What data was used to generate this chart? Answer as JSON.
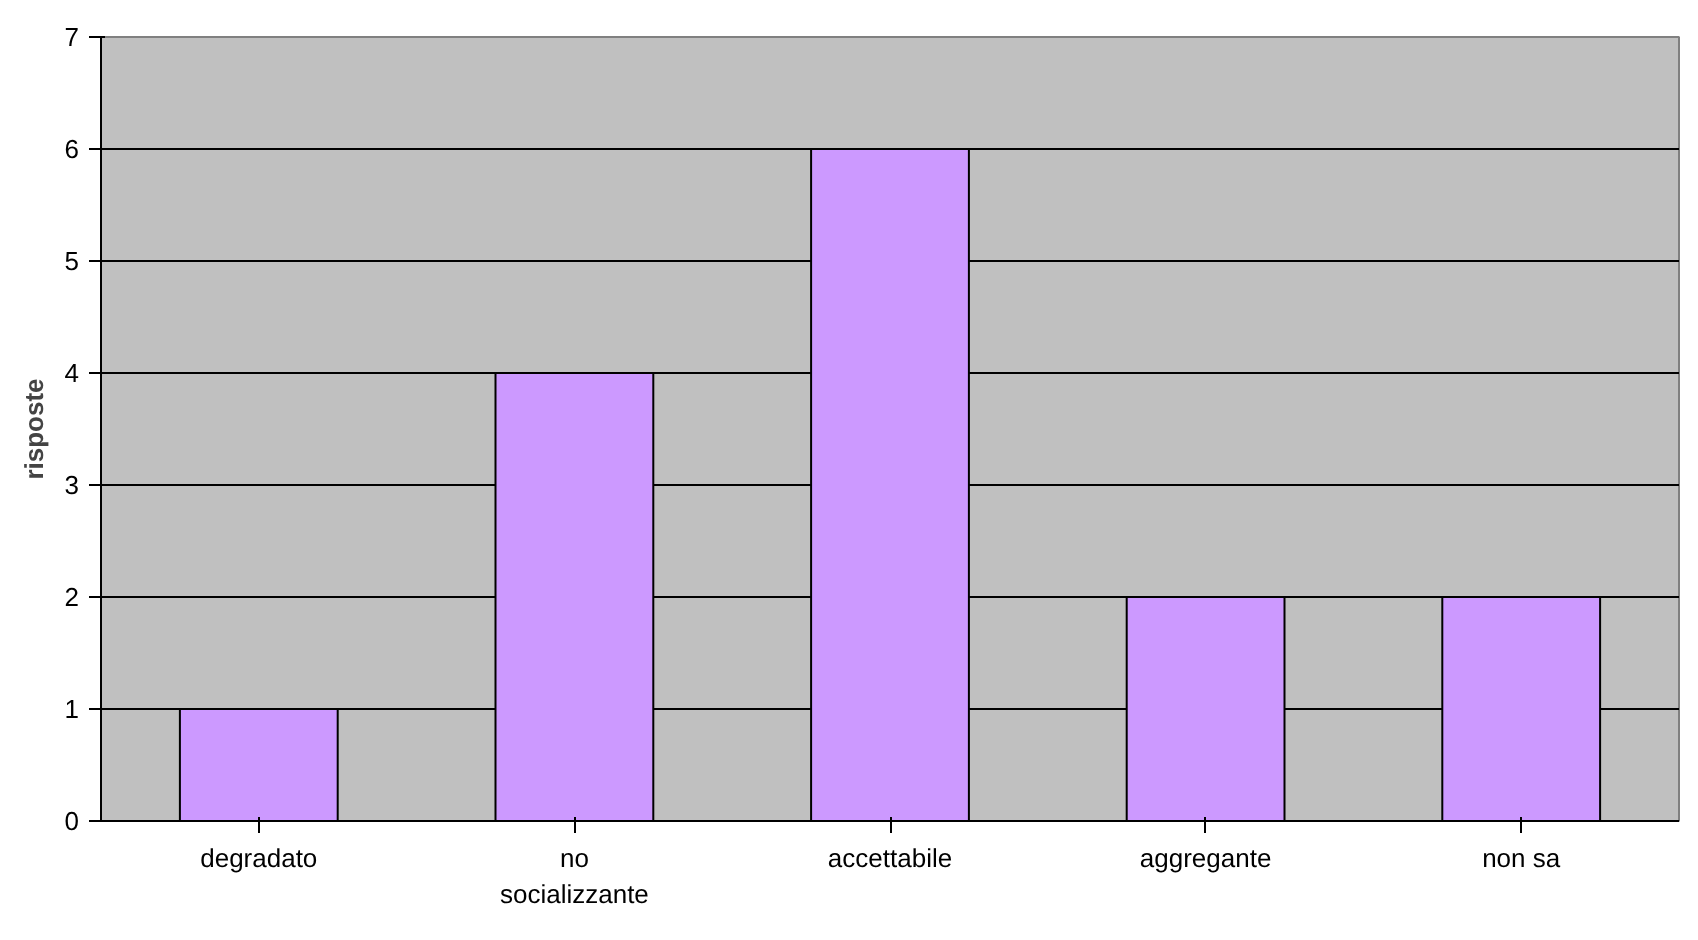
{
  "chart_data": {
    "type": "bar",
    "ylabel": "risposte",
    "categories": [
      "degradato",
      "no socializzante",
      "accettabile",
      "aggregante",
      "non sa"
    ],
    "values": [
      1,
      4,
      6,
      2,
      2
    ],
    "color": "#cc99ff",
    "ylim": [
      0,
      7
    ],
    "yticks": [
      0,
      1,
      2,
      3,
      4,
      5,
      6,
      7
    ],
    "grid": "y"
  }
}
